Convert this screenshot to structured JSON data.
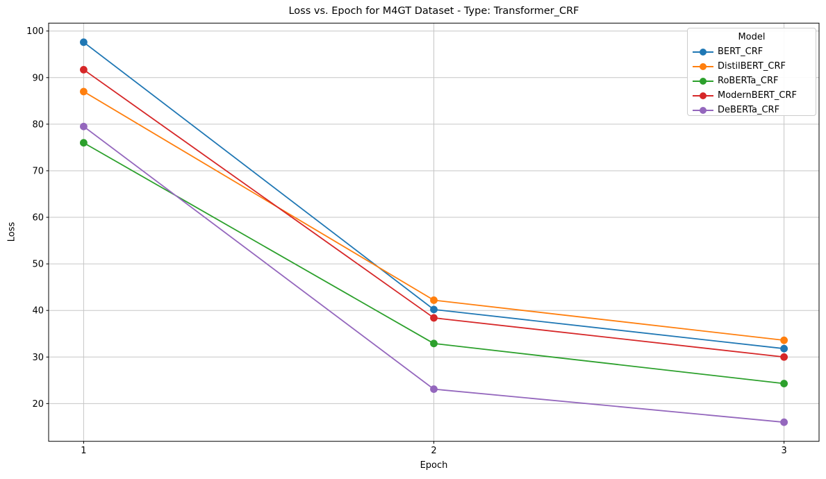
{
  "chart_data": {
    "type": "line",
    "title": "Loss vs. Epoch for M4GT Dataset - Type: Transformer_CRF",
    "xlabel": "Epoch",
    "ylabel": "Loss",
    "x": [
      1,
      2,
      3
    ],
    "xticks": [
      1,
      2,
      3
    ],
    "yticks": [
      20,
      30,
      40,
      50,
      60,
      70,
      80,
      90,
      100
    ],
    "xlim": [
      0.9,
      3.1
    ],
    "ylim": [
      11.9,
      101.7
    ],
    "grid": true,
    "legend": {
      "title": "Model",
      "position": "upper right"
    },
    "series": [
      {
        "name": "BERT_CRF",
        "color": "#1f77b4",
        "values": [
          97.6,
          40.2,
          31.8
        ]
      },
      {
        "name": "DistilBERT_CRF",
        "color": "#ff7f0e",
        "values": [
          87.0,
          42.2,
          33.6
        ]
      },
      {
        "name": "RoBERTa_CRF",
        "color": "#2ca02c",
        "values": [
          76.0,
          32.9,
          24.3
        ]
      },
      {
        "name": "ModernBERT_CRF",
        "color": "#d62728",
        "values": [
          91.7,
          38.4,
          30.0
        ]
      },
      {
        "name": "DeBERTa_CRF",
        "color": "#9467bd",
        "values": [
          79.5,
          23.1,
          16.0
        ]
      }
    ],
    "style": {
      "grid_color": "#c6c6c6",
      "spine_color": "#000000",
      "line_width": 1.8,
      "marker_radius": 5.4
    }
  }
}
